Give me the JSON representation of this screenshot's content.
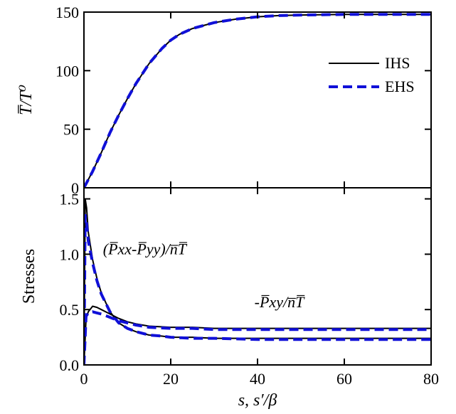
{
  "chart_data": [
    {
      "type": "line",
      "panel": "top",
      "ylabel": "T̅/T⁰",
      "xlim": [
        0,
        80
      ],
      "ylim": [
        0,
        150
      ],
      "yticks": [
        0,
        50,
        100,
        150
      ],
      "grid": false,
      "legend_position": "right",
      "series": [
        {
          "name": "IHS",
          "color": "#000000",
          "style": "solid",
          "x": [
            0,
            1,
            2,
            4,
            6,
            8,
            10,
            12,
            15,
            18,
            20,
            22,
            25,
            28,
            30,
            35,
            40,
            45,
            50,
            60,
            70,
            80
          ],
          "y": [
            0,
            7,
            14,
            30,
            47,
            62,
            76,
            89,
            106,
            119,
            126,
            131,
            136,
            139,
            141,
            144,
            146,
            147,
            147.5,
            148,
            148,
            148
          ]
        },
        {
          "name": "EHS",
          "color": "#1010d8",
          "style": "dashed",
          "x": [
            0,
            1,
            2,
            4,
            6,
            8,
            10,
            12,
            15,
            18,
            20,
            22,
            25,
            28,
            30,
            35,
            40,
            45,
            50,
            60,
            70,
            80
          ],
          "y": [
            0,
            7,
            14,
            30,
            47,
            62,
            76,
            89,
            106,
            119,
            126,
            131,
            136,
            139,
            141,
            144,
            146,
            147,
            147.5,
            148,
            148,
            148
          ]
        }
      ]
    },
    {
      "type": "line",
      "panel": "bottom",
      "xlabel": "s, s′/β",
      "ylabel": "Stresses",
      "xlim": [
        0,
        80
      ],
      "ylim": [
        0,
        1.6
      ],
      "xticks": [
        0,
        20,
        40,
        60,
        80
      ],
      "yticks": [
        0.0,
        0.5,
        1.0,
        1.5
      ],
      "ytick_labels": [
        "0.0",
        "0.5",
        "1.0",
        "1.5"
      ],
      "grid": false,
      "annotations": [
        {
          "text": "(P̅xx-P̅yy)/n̅T̅",
          "x": 14,
          "y": 1.0
        },
        {
          "text": "-P̅xy/n̅T̅",
          "x": 45,
          "y": 0.52
        }
      ],
      "series": [
        {
          "name": "IHS (P̅xx-P̅yy)/n̅T̅",
          "color": "#000000",
          "style": "solid",
          "x": [
            0,
            0.3,
            0.6,
            1,
            2,
            3,
            4,
            6,
            8,
            10,
            12,
            15,
            18,
            20,
            25,
            30,
            40,
            50,
            60,
            70,
            80
          ],
          "y": [
            0,
            1.5,
            1.42,
            1.2,
            0.95,
            0.78,
            0.65,
            0.48,
            0.38,
            0.33,
            0.3,
            0.27,
            0.26,
            0.25,
            0.25,
            0.24,
            0.24,
            0.24,
            0.24,
            0.24,
            0.24
          ]
        },
        {
          "name": "EHS (P̅xx-P̅yy)/n̅T̅",
          "color": "#1010d8",
          "style": "dashed",
          "x": [
            0,
            0.3,
            0.6,
            1,
            2,
            3,
            4,
            6,
            8,
            10,
            12,
            15,
            18,
            20,
            25,
            30,
            40,
            50,
            60,
            70,
            80
          ],
          "y": [
            0,
            1.35,
            1.28,
            1.12,
            0.92,
            0.76,
            0.64,
            0.48,
            0.38,
            0.33,
            0.3,
            0.27,
            0.26,
            0.25,
            0.24,
            0.24,
            0.23,
            0.23,
            0.23,
            0.23,
            0.23
          ]
        },
        {
          "name": "IHS -P̅xy/n̅T̅",
          "color": "#000000",
          "style": "solid",
          "x": [
            0,
            0.5,
            1,
            2,
            3,
            4,
            6,
            8,
            10,
            12,
            15,
            20,
            25,
            30,
            40,
            50,
            60,
            70,
            80
          ],
          "y": [
            0,
            0.42,
            0.48,
            0.53,
            0.52,
            0.5,
            0.46,
            0.42,
            0.39,
            0.37,
            0.35,
            0.34,
            0.34,
            0.33,
            0.33,
            0.33,
            0.33,
            0.33,
            0.33
          ]
        },
        {
          "name": "EHS -P̅xy/n̅T̅",
          "color": "#1010d8",
          "style": "dashed",
          "x": [
            0,
            0.5,
            1,
            2,
            3,
            4,
            6,
            8,
            10,
            12,
            15,
            20,
            25,
            30,
            40,
            50,
            60,
            70,
            80
          ],
          "y": [
            0,
            0.44,
            0.47,
            0.48,
            0.47,
            0.46,
            0.43,
            0.4,
            0.38,
            0.36,
            0.34,
            0.33,
            0.33,
            0.32,
            0.32,
            0.32,
            0.32,
            0.32,
            0.32
          ]
        }
      ]
    }
  ]
}
